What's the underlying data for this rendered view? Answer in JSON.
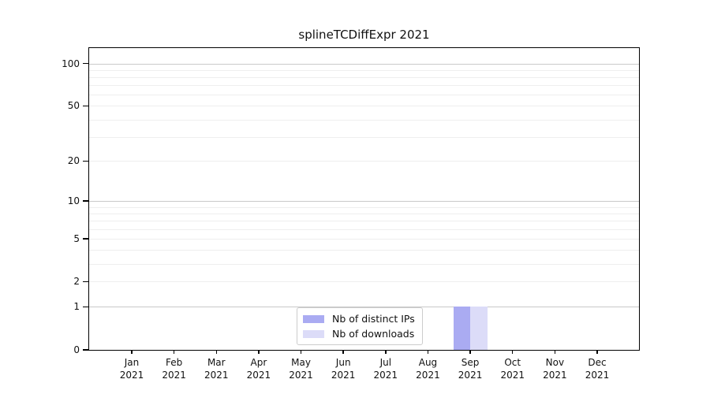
{
  "chart_data": {
    "type": "bar",
    "title": "splineTCDiffExpr 2021",
    "categories": [
      "Jan",
      "Feb",
      "Mar",
      "Apr",
      "May",
      "Jun",
      "Jul",
      "Aug",
      "Sep",
      "Oct",
      "Nov",
      "Dec"
    ],
    "year_label": "2021",
    "series": [
      {
        "name": "Nb of distinct IPs",
        "color": "#aaabf2",
        "values": [
          0,
          0,
          0,
          0,
          0,
          0,
          0,
          0,
          1,
          0,
          0,
          0
        ]
      },
      {
        "name": "Nb of downloads",
        "color": "#dcdcf8",
        "values": [
          0,
          0,
          0,
          0,
          0,
          0,
          0,
          0,
          1,
          0,
          0,
          0
        ]
      }
    ],
    "y_axis": {
      "scale": "log1p",
      "ticks": [
        0,
        1,
        2,
        5,
        10,
        20,
        50,
        100
      ],
      "max": 113
    },
    "grid": {
      "major_values": [
        1,
        10,
        100
      ],
      "minor_values": [
        2,
        3,
        4,
        5,
        6,
        7,
        8,
        9,
        20,
        30,
        40,
        50,
        60,
        70,
        80,
        90
      ],
      "major_color": "#c9c9c9",
      "minor_color": "#eeeeee"
    },
    "legend_position": "lower center"
  }
}
